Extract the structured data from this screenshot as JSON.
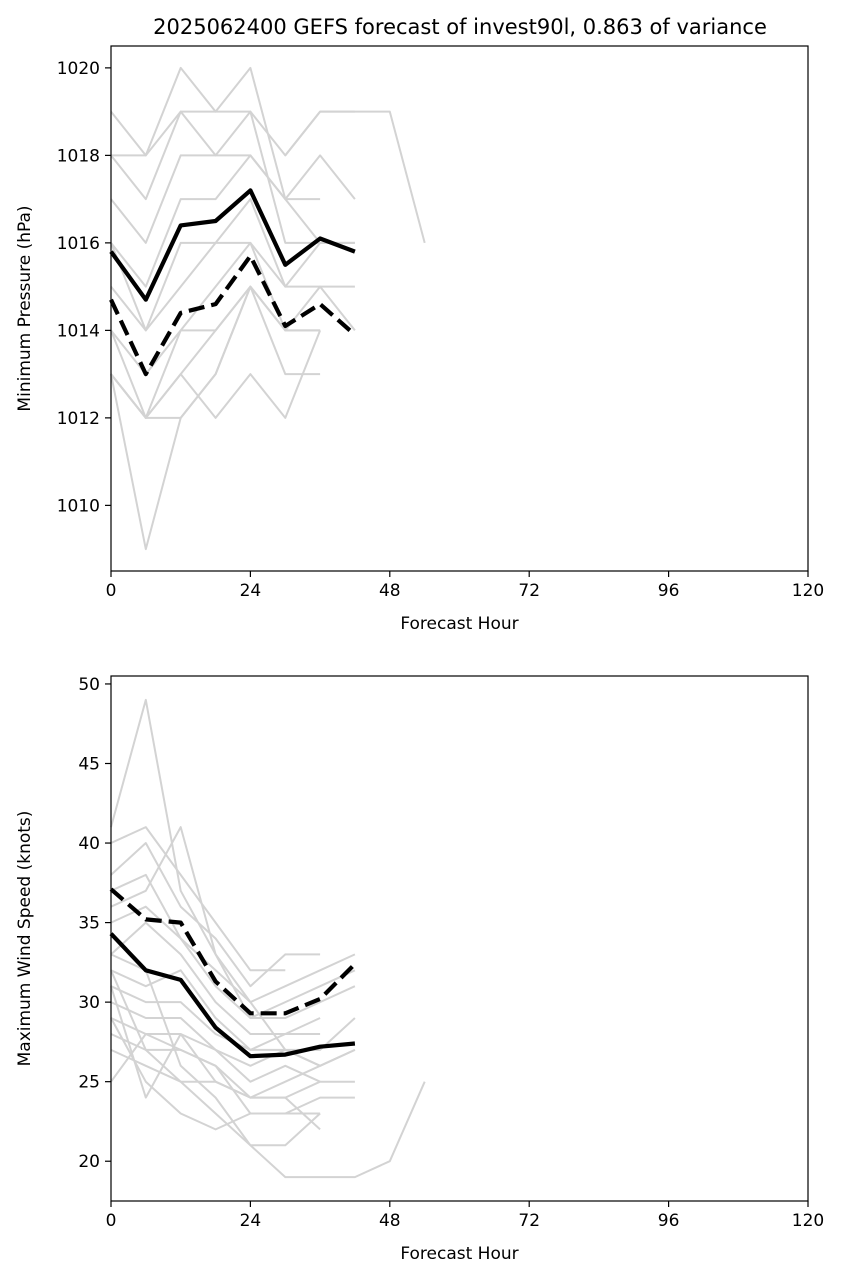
{
  "title": "2025062400 GEFS forecast of invest90l, 0.863 of variance",
  "colors": {
    "ensemble": "#d3d3d3",
    "mean": "#000000",
    "alt": "#000000"
  },
  "chart_data": [
    {
      "type": "line",
      "xlabel": "Forecast Hour",
      "ylabel": "Minimum Pressure (hPa)",
      "xlim": [
        0,
        120
      ],
      "ylim": [
        1008.5,
        1020.5
      ],
      "xticks": [
        0,
        24,
        48,
        72,
        96,
        120
      ],
      "yticks": [
        1010,
        1012,
        1014,
        1016,
        1018,
        1020
      ],
      "x": [
        0,
        6,
        12,
        18,
        24,
        30,
        36,
        42
      ],
      "ensemble": [
        {
          "x": [
            0,
            6,
            12,
            18,
            24,
            30,
            36,
            42
          ],
          "y": [
            1019,
            1018,
            1020,
            1019,
            1020,
            1017,
            1018,
            1017
          ]
        },
        {
          "x": [
            0,
            6,
            12,
            18,
            24,
            30,
            36,
            42
          ],
          "y": [
            1018,
            1018,
            1019,
            1019,
            1019,
            1018,
            1019,
            1019
          ]
        },
        {
          "x": [
            30,
            36,
            42,
            48,
            54
          ],
          "y": [
            1018,
            1019,
            1019,
            1019,
            1016
          ]
        },
        {
          "x": [
            0,
            6,
            12,
            18,
            24,
            30,
            36,
            42
          ],
          "y": [
            1018,
            1017,
            1019,
            1018,
            1019,
            1016,
            1016,
            1016
          ]
        },
        {
          "x": [
            0,
            6,
            12,
            18,
            24,
            30,
            36
          ],
          "y": [
            1017,
            1016,
            1018,
            1018,
            1018,
            1017,
            1017
          ]
        },
        {
          "x": [
            0,
            6,
            12,
            18,
            24,
            30,
            36
          ],
          "y": [
            1016,
            1015,
            1017,
            1017,
            1018,
            1017,
            1016
          ]
        },
        {
          "x": [
            0,
            6,
            12,
            18,
            24,
            30,
            36,
            42
          ],
          "y": [
            1016,
            1014,
            1016,
            1016,
            1017,
            1015,
            1016,
            1016
          ]
        },
        {
          "x": [
            0,
            6,
            12,
            18,
            24,
            30,
            36,
            42
          ],
          "y": [
            1015,
            1014,
            1015,
            1016,
            1016,
            1015,
            1015,
            1015
          ]
        },
        {
          "x": [
            0,
            6,
            12,
            18,
            24,
            30,
            36
          ],
          "y": [
            1014,
            1013,
            1014,
            1015,
            1016,
            1014,
            1014
          ]
        },
        {
          "x": [
            0,
            6,
            12,
            18,
            24,
            30,
            36,
            42
          ],
          "y": [
            1014,
            1012,
            1014,
            1014,
            1015,
            1014,
            1015,
            1014
          ]
        },
        {
          "x": [
            0,
            6,
            12,
            18,
            24,
            30,
            36
          ],
          "y": [
            1013,
            1012,
            1013,
            1014,
            1015,
            1013,
            1013
          ]
        },
        {
          "x": [
            0,
            6,
            12,
            18,
            24,
            30,
            36
          ],
          "y": [
            1013,
            1012,
            1012,
            1013,
            1015,
            1014,
            1014
          ]
        },
        {
          "x": [
            0,
            6,
            12,
            18,
            24,
            30,
            36
          ],
          "y": [
            1013,
            1012,
            1013,
            1012,
            1013,
            1012,
            1014
          ]
        },
        {
          "x": [
            0,
            6,
            12,
            18,
            24
          ],
          "y": [
            1013,
            1009,
            1012,
            1013,
            1015
          ]
        }
      ],
      "series": [
        {
          "values": [
            1015.8,
            1014.7,
            1016.4,
            1016.5,
            1017.2,
            1015.5,
            1016.1,
            1015.8
          ],
          "style": "solid"
        },
        {
          "values": [
            1014.7,
            1013.0,
            1014.4,
            1014.6,
            1015.7,
            1014.1,
            1014.6,
            1013.9
          ],
          "style": "dashed"
        }
      ]
    },
    {
      "type": "line",
      "xlabel": "Forecast Hour",
      "ylabel": "Maximum Wind Speed (knots)",
      "xlim": [
        0,
        120
      ],
      "ylim": [
        17.5,
        50.5
      ],
      "xticks": [
        0,
        24,
        48,
        72,
        96,
        120
      ],
      "yticks": [
        20,
        25,
        30,
        35,
        40,
        45,
        50
      ],
      "x": [
        0,
        6,
        12,
        18,
        24,
        30,
        36,
        42
      ],
      "ensemble": [
        {
          "x": [
            0,
            6,
            12,
            18,
            24,
            30,
            36
          ],
          "y": [
            41,
            49,
            37,
            33,
            30,
            27,
            26
          ]
        },
        {
          "x": [
            0,
            6,
            12,
            18,
            24,
            30
          ],
          "y": [
            40,
            41,
            38,
            35,
            32,
            32
          ]
        },
        {
          "x": [
            0,
            6,
            12,
            18,
            24,
            30,
            36
          ],
          "y": [
            38,
            40,
            36,
            34,
            31,
            33,
            33
          ]
        },
        {
          "x": [
            0,
            6,
            12,
            18,
            24,
            30,
            36,
            42
          ],
          "y": [
            37,
            38,
            34,
            32,
            30,
            31,
            32,
            33
          ]
        },
        {
          "x": [
            0,
            6,
            12,
            18,
            24,
            30,
            36,
            42
          ],
          "y": [
            36,
            37,
            41,
            33,
            29,
            30,
            31,
            32
          ]
        },
        {
          "x": [
            0,
            6,
            12,
            18,
            24,
            30,
            36,
            42
          ],
          "y": [
            35,
            36,
            34,
            31,
            29,
            29,
            30,
            31
          ]
        },
        {
          "x": [
            0,
            6,
            12,
            18,
            24,
            30,
            36
          ],
          "y": [
            33,
            35,
            33,
            30,
            28,
            28,
            29
          ]
        },
        {
          "x": [
            0,
            6,
            12,
            18,
            24,
            30,
            36
          ],
          "y": [
            32,
            31,
            32,
            29,
            27,
            28,
            28
          ]
        },
        {
          "x": [
            0,
            6,
            12,
            18,
            24,
            30,
            36,
            42
          ],
          "y": [
            31,
            30,
            30,
            28,
            27,
            27,
            27,
            29
          ]
        },
        {
          "x": [
            0,
            6,
            12,
            18,
            24,
            30,
            36,
            42
          ],
          "y": [
            30,
            29,
            29,
            27,
            26,
            27,
            26,
            27
          ]
        },
        {
          "x": [
            0,
            6,
            12,
            18,
            24,
            30,
            36
          ],
          "y": [
            29,
            28,
            28,
            27,
            25,
            26,
            25
          ]
        },
        {
          "x": [
            0,
            6,
            12,
            18,
            24,
            30,
            36,
            42
          ],
          "y": [
            28,
            27,
            27,
            26,
            24,
            25,
            26,
            27
          ]
        },
        {
          "x": [
            0,
            6,
            12,
            18,
            24,
            30,
            36,
            42
          ],
          "y": [
            27,
            26,
            25,
            25,
            24,
            24,
            25,
            25
          ]
        },
        {
          "x": [
            0,
            6,
            12,
            18,
            24,
            30,
            36,
            42
          ],
          "y": [
            25,
            28,
            27,
            26,
            23,
            23,
            24,
            24
          ]
        },
        {
          "x": [
            0,
            6,
            12,
            18,
            24,
            30,
            36
          ],
          "y": [
            31,
            24,
            28,
            25,
            24,
            24,
            22
          ]
        },
        {
          "x": [
            0,
            6,
            12,
            18,
            24,
            30,
            36
          ],
          "y": [
            29,
            25,
            23,
            22,
            23,
            23,
            23
          ]
        },
        {
          "x": [
            0,
            6,
            12,
            18,
            24,
            30,
            36,
            42,
            48,
            54
          ],
          "y": [
            32,
            27,
            25,
            23,
            21,
            19,
            19,
            19,
            20,
            25
          ]
        },
        {
          "x": [
            0,
            6,
            12,
            18,
            24,
            30,
            36
          ],
          "y": [
            33,
            32,
            26,
            24,
            21,
            21,
            23
          ]
        }
      ],
      "series": [
        {
          "values": [
            34.3,
            32.0,
            31.4,
            28.4,
            26.6,
            26.7,
            27.2,
            27.4
          ],
          "style": "solid"
        },
        {
          "values": [
            37.1,
            35.2,
            35.0,
            31.3,
            29.3,
            29.3,
            30.2,
            32.4
          ],
          "style": "dashed"
        }
      ]
    }
  ]
}
